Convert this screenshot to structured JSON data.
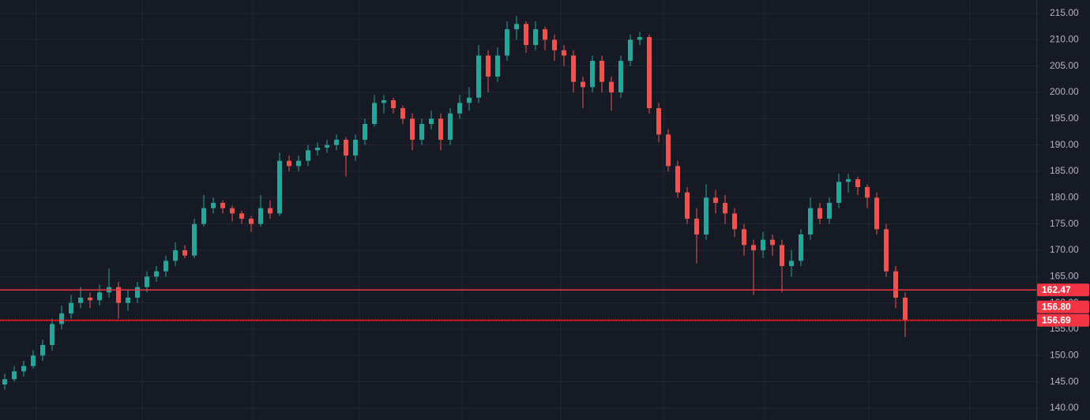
{
  "chart_data": {
    "type": "candlestick",
    "up_color": "#26a69a",
    "down_color": "#ef5350",
    "grid": true,
    "ylim": [
      140,
      215
    ],
    "yticks": [
      {
        "value": 140,
        "label": "140.00"
      },
      {
        "value": 145,
        "label": "145.00"
      },
      {
        "value": 150,
        "label": "150.00"
      },
      {
        "value": 155,
        "label": "155.00"
      },
      {
        "value": 160,
        "label": "160.00"
      },
      {
        "value": 165,
        "label": "165.00"
      },
      {
        "value": 170,
        "label": "170.00"
      },
      {
        "value": 175,
        "label": "175.00"
      },
      {
        "value": 180,
        "label": "180.00"
      },
      {
        "value": 185,
        "label": "185.00"
      },
      {
        "value": 190,
        "label": "190.00"
      },
      {
        "value": 195,
        "label": "195.00"
      },
      {
        "value": 200,
        "label": "200.00"
      },
      {
        "value": 205,
        "label": "205.00"
      },
      {
        "value": 210,
        "label": "210.00"
      },
      {
        "value": 215,
        "label": "215.00"
      }
    ],
    "open": [
      144.5,
      145.5,
      147,
      148,
      150,
      152,
      156,
      158,
      160,
      161,
      160.5,
      162,
      163,
      160,
      161,
      163,
      165,
      166,
      168,
      170,
      169,
      175,
      178,
      179,
      178,
      177,
      176,
      175,
      178,
      177,
      187,
      186,
      187,
      189,
      189.5,
      190,
      191,
      188,
      191,
      194,
      198,
      198.5,
      197,
      195,
      191,
      194,
      195,
      191,
      196,
      198,
      199,
      207,
      203,
      207,
      212,
      213,
      209,
      212,
      210,
      208,
      207,
      202,
      201,
      206,
      202,
      200,
      206,
      210,
      210.5,
      197,
      192,
      186,
      181,
      176,
      173,
      180,
      179,
      177,
      174,
      171,
      170,
      172,
      171,
      167,
      168,
      173,
      178,
      176,
      179,
      183,
      183.5,
      182,
      180,
      174,
      166,
      161
    ],
    "high": [
      146.5,
      148,
      149,
      151,
      153,
      157,
      159.5,
      161.5,
      163,
      162,
      163.5,
      166.5,
      164,
      162.5,
      164,
      166,
      167,
      169,
      171.5,
      171,
      176,
      180.5,
      180,
      179.5,
      178.5,
      177.5,
      176.5,
      180.5,
      179.5,
      188.5,
      188,
      188,
      190,
      190.5,
      191,
      192,
      191.5,
      192,
      195,
      199.5,
      199.5,
      199,
      197.5,
      196,
      195,
      196.5,
      196,
      197,
      199.5,
      201,
      209,
      208,
      208.5,
      213.5,
      214.5,
      213.5,
      213.5,
      212.5,
      211,
      209,
      208,
      203,
      207,
      207,
      203,
      207,
      211,
      211.5,
      211,
      198,
      193,
      187,
      182,
      178,
      182.5,
      181.5,
      180.5,
      178,
      175,
      172,
      173.5,
      173,
      172,
      170,
      174,
      180,
      179,
      180,
      184.5,
      184.5,
      184,
      182.5,
      181,
      175,
      167,
      162
    ],
    "low": [
      143.5,
      145,
      146,
      147.5,
      149,
      151,
      155,
      157,
      159,
      159,
      159.5,
      161,
      157,
      158.5,
      160,
      162,
      164,
      165,
      167,
      168.5,
      168.5,
      174.5,
      177,
      177,
      175.5,
      175,
      173.5,
      174.5,
      176,
      176.5,
      185,
      185,
      186,
      188,
      188.5,
      189,
      184,
      187,
      190,
      193.5,
      196,
      196,
      194,
      189,
      190,
      193,
      189,
      190,
      195,
      196.5,
      198,
      200,
      202,
      206,
      210,
      207.5,
      208,
      208,
      206,
      205,
      200,
      197,
      200,
      200,
      196.5,
      199,
      205,
      209,
      196,
      190.5,
      185,
      180,
      175,
      167.5,
      172,
      177,
      175,
      172.5,
      169,
      161.5,
      168.5,
      169,
      162,
      165,
      167,
      172,
      175,
      175,
      178,
      181,
      180.5,
      178,
      173,
      165,
      159,
      153.5
    ],
    "close": [
      145.5,
      147,
      148,
      150,
      152,
      156,
      158,
      160,
      161,
      160.5,
      162,
      163,
      160,
      161,
      163,
      165,
      166,
      168,
      170,
      169,
      175,
      178,
      179,
      178,
      177,
      176,
      175,
      178,
      177,
      187,
      186,
      187,
      189,
      189.5,
      190,
      191,
      188,
      191,
      194,
      198,
      198.5,
      197,
      195,
      191,
      194,
      195,
      191,
      196,
      198,
      199,
      207,
      203,
      207,
      212,
      213,
      209,
      212,
      210,
      208,
      207,
      202,
      201,
      206,
      202,
      200,
      206,
      210,
      210.5,
      197,
      192,
      186,
      181,
      176,
      173,
      180,
      179,
      177,
      174,
      171,
      170,
      172,
      171,
      167,
      168,
      173,
      178,
      176,
      179,
      183,
      183.5,
      182,
      180,
      174,
      166,
      161,
      156.8
    ],
    "hlines": [
      {
        "value": 162.47,
        "color": "#f23645",
        "style": "solid"
      },
      {
        "value": 156.69,
        "color": "#f23645",
        "style": "dotted"
      }
    ],
    "price_labels": [
      {
        "value": 162.47,
        "label": "162.47",
        "color": "#f23645"
      },
      {
        "value": 156.8,
        "label": "156.80",
        "color": "#f23645"
      },
      {
        "value": 156.69,
        "label": "156.69",
        "color": "#f23645"
      }
    ]
  }
}
